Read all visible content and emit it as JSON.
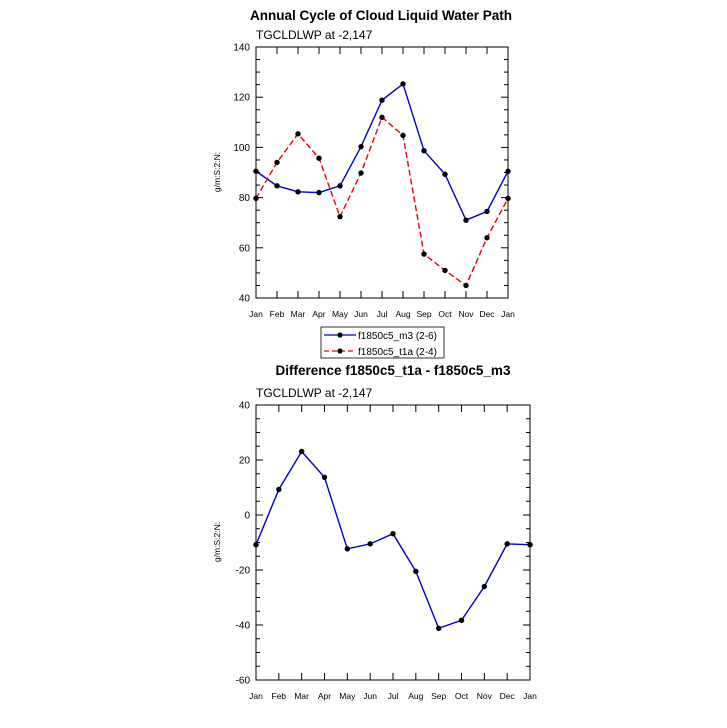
{
  "chart_data": [
    {
      "type": "line",
      "title": "Annual Cycle of Cloud Liquid Water Path",
      "subtitle": "TGCLDLWP at -2,147",
      "ylabel": "g/m:S:2:N:",
      "xlabel": "",
      "categories": [
        "Jan",
        "Feb",
        "Mar",
        "Apr",
        "May",
        "Jun",
        "Jul",
        "Aug",
        "Sep",
        "Oct",
        "Nov",
        "Dec",
        "Jan"
      ],
      "ylim": [
        40,
        140
      ],
      "yticks": [
        40,
        60,
        80,
        100,
        120,
        140
      ],
      "grid": false,
      "legend": "bottom-center",
      "series": [
        {
          "name": "f1850c5_m3 (2-6)",
          "color": "#0000cc",
          "dash": "solid",
          "values": [
            90.5,
            84.7,
            82.3,
            82.0,
            84.7,
            100.3,
            118.8,
            125.3,
            98.7,
            89.3,
            71.0,
            74.5,
            90.5
          ]
        },
        {
          "name": "f1850c5_t1a (2-4)",
          "color": "#ee0000",
          "dash": "dashed",
          "values": [
            79.7,
            94.0,
            105.4,
            95.7,
            72.4,
            89.8,
            112.0,
            104.8,
            57.5,
            51.0,
            45.0,
            64.0,
            79.7
          ]
        }
      ]
    },
    {
      "type": "line",
      "title": "Difference f1850c5_t1a - f1850c5_m3",
      "subtitle": "TGCLDLWP at -2,147",
      "ylabel": "g/m:S:2:N:",
      "xlabel": "",
      "categories": [
        "Jan",
        "Feb",
        "Mar",
        "Apr",
        "May",
        "Jun",
        "Jul",
        "Aug",
        "Sep",
        "Oct",
        "Nov",
        "Dec",
        "Jan"
      ],
      "ylim": [
        -60,
        40
      ],
      "yticks": [
        -60,
        -40,
        -20,
        0,
        20,
        40
      ],
      "grid": false,
      "series": [
        {
          "color": "#0000cc",
          "dash": "solid",
          "values": [
            -10.8,
            9.3,
            23.1,
            13.7,
            -12.3,
            -10.5,
            -6.8,
            -20.5,
            -41.2,
            -38.3,
            -26.0,
            -10.5,
            -10.8
          ]
        }
      ]
    }
  ]
}
